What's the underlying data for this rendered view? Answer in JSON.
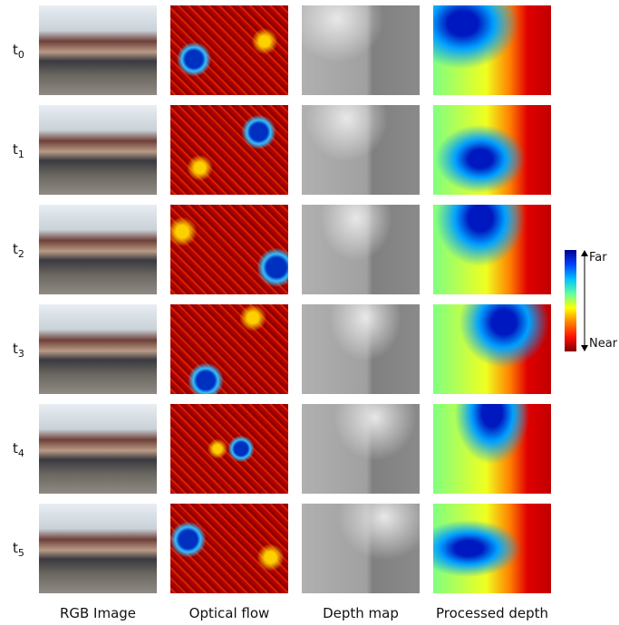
{
  "rows": [
    {
      "label": "t",
      "subscript": "0"
    },
    {
      "label": "t",
      "subscript": "1"
    },
    {
      "label": "t",
      "subscript": "2"
    },
    {
      "label": "t",
      "subscript": "3"
    },
    {
      "label": "t",
      "subscript": "4"
    },
    {
      "label": "t",
      "subscript": "5"
    }
  ],
  "columns": [
    "RGB Image",
    "Optical flow",
    "Depth map",
    "Processed depth"
  ],
  "colorbar": {
    "top": "Far",
    "bottom": "Near"
  }
}
